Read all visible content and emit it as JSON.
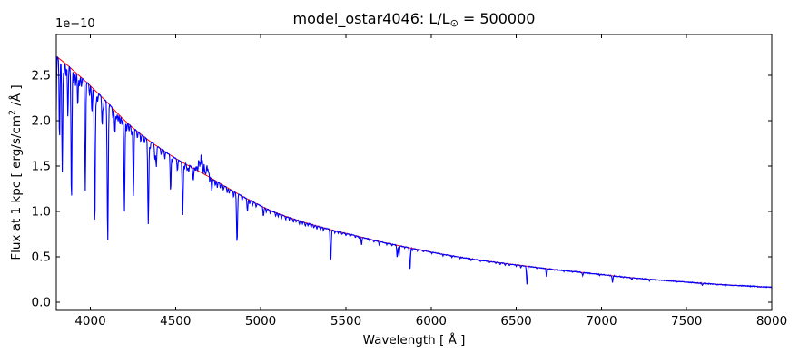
{
  "figure": {
    "title_prefix": "model_ostar4046: L/L",
    "title_sub": "⊙",
    "title_suffix": " = 500000",
    "offset_text": "1e−10",
    "xlabel": "Wavelength [ Å ]",
    "ylabel_prefix": "Flux at 1 kpc [ erg/s/cm",
    "ylabel_sup": "2",
    "ylabel_suffix": " /Å ]",
    "background_color": "#ffffff",
    "frame_color": "#000000"
  },
  "chart_data": {
    "type": "line",
    "title": "model_ostar4046: L/L⊙ = 500000",
    "xlabel": "Wavelength [ Å ]",
    "ylabel": "Flux at 1 kpc [ erg/s/cm2 /Å ]",
    "y_offset_text": "1e−10",
    "y_unit_factor": "1e-10 erg/s/cm2/Å",
    "xlim": [
      3800,
      8000
    ],
    "ylim": [
      -0.09,
      2.95
    ],
    "xticks": [
      4000,
      4500,
      5000,
      5500,
      6000,
      6500,
      7000,
      7500,
      8000
    ],
    "yticks": [
      "0.0",
      "0.5",
      "1.0",
      "1.5",
      "2.0",
      "2.5"
    ],
    "grid": false,
    "legend": "none",
    "tick_direction": "in",
    "series": [
      {
        "name": "continuum",
        "color": "#ff0000",
        "description": "smooth stellar continuum, flux in units of 1e-10",
        "anchors": [
          [
            3800,
            2.71
          ],
          [
            3860,
            2.62
          ],
          [
            3920,
            2.52
          ],
          [
            3980,
            2.42
          ],
          [
            4040,
            2.31
          ],
          [
            4100,
            2.2
          ],
          [
            4160,
            2.08
          ],
          [
            4220,
            1.97
          ],
          [
            4290,
            1.86
          ],
          [
            4360,
            1.76
          ],
          [
            4430,
            1.67
          ],
          [
            4500,
            1.585
          ],
          [
            4580,
            1.5
          ],
          [
            4660,
            1.42
          ],
          [
            4760,
            1.31
          ],
          [
            4861,
            1.2
          ],
          [
            4960,
            1.1
          ],
          [
            5070,
            1.0
          ],
          [
            5180,
            0.925
          ],
          [
            5300,
            0.855
          ],
          [
            5420,
            0.795
          ],
          [
            5540,
            0.74
          ],
          [
            5660,
            0.685
          ],
          [
            5780,
            0.635
          ],
          [
            5900,
            0.59
          ],
          [
            6020,
            0.545
          ],
          [
            6140,
            0.505
          ],
          [
            6260,
            0.47
          ],
          [
            6400,
            0.435
          ],
          [
            6550,
            0.4
          ],
          [
            6700,
            0.365
          ],
          [
            6850,
            0.335
          ],
          [
            7000,
            0.305
          ],
          [
            7150,
            0.275
          ],
          [
            7300,
            0.25
          ],
          [
            7450,
            0.228
          ],
          [
            7600,
            0.208
          ],
          [
            7750,
            0.19
          ],
          [
            8000,
            0.165
          ]
        ]
      },
      {
        "name": "spectrum",
        "color": "#0000ff",
        "description": "synthetic O-star spectrum = continuum with absorption/emission lines",
        "absorption_lines": [
          [
            3798,
            0.3,
            2.5
          ],
          [
            3819,
            0.34,
            2.5
          ],
          [
            3835,
            0.46,
            2.8
          ],
          [
            3868,
            0.22,
            2.5
          ],
          [
            3889,
            0.58,
            2.8
          ],
          [
            3926,
            0.14,
            2.5
          ],
          [
            3970,
            0.5,
            2.8
          ],
          [
            4009,
            0.12,
            2.5
          ],
          [
            4026,
            0.65,
            2.8
          ],
          [
            4069,
            0.14,
            2.5
          ],
          [
            4102,
            0.7,
            3.0
          ],
          [
            4144,
            0.12,
            2.5
          ],
          [
            4200,
            0.5,
            2.8
          ],
          [
            4253,
            0.4,
            2.5
          ],
          [
            4340,
            0.52,
            3.0
          ],
          [
            4379,
            0.1,
            2.5
          ],
          [
            4387,
            0.14,
            2.5
          ],
          [
            4471,
            0.25,
            2.5
          ],
          [
            4511,
            0.08,
            2.5
          ],
          [
            4542,
            0.38,
            2.8
          ],
          [
            4604,
            0.1,
            2.5
          ],
          [
            4713,
            0.1,
            2.5
          ],
          [
            4861,
            0.46,
            3.0
          ],
          [
            4922,
            0.12,
            2.5
          ],
          [
            5016,
            0.1,
            2.5
          ],
          [
            5411,
            0.45,
            2.8
          ],
          [
            5592,
            0.12,
            2.5
          ],
          [
            5696,
            0.06,
            2.5
          ],
          [
            5801,
            0.22,
            2.5
          ],
          [
            5812,
            0.18,
            2.5
          ],
          [
            5876,
            0.42,
            2.8
          ],
          [
            6406,
            0.05,
            2.5
          ],
          [
            6435,
            0.04,
            2.5
          ],
          [
            6527,
            0.06,
            2.5
          ],
          [
            6563,
            0.5,
            3.0
          ],
          [
            6678,
            0.25,
            2.5
          ],
          [
            6890,
            0.1,
            2.5
          ],
          [
            7065,
            0.25,
            2.5
          ],
          [
            7178,
            0.1,
            2.5
          ],
          [
            7281,
            0.08,
            2.5
          ],
          [
            7593,
            0.12,
            2.5
          ],
          [
            7726,
            0.06,
            2.5
          ]
        ],
        "weak_lines": [
          [
            3845,
            0.06
          ],
          [
            3857,
            0.05
          ],
          [
            3903,
            0.05
          ],
          [
            3913,
            0.06
          ],
          [
            3936,
            0.05
          ],
          [
            3948,
            0.04
          ],
          [
            3995,
            0.05
          ],
          [
            4035,
            0.05
          ],
          [
            4043,
            0.04
          ],
          [
            4076,
            0.05
          ],
          [
            4097,
            0.06
          ],
          [
            4132,
            0.05
          ],
          [
            4153,
            0.04
          ],
          [
            4163,
            0.04
          ],
          [
            4174,
            0.05
          ],
          [
            4186,
            0.04
          ],
          [
            4213,
            0.05
          ],
          [
            4227,
            0.04
          ],
          [
            4242,
            0.05
          ],
          [
            4276,
            0.04
          ],
          [
            4296,
            0.05
          ],
          [
            4317,
            0.04
          ],
          [
            4351,
            0.05
          ],
          [
            4415,
            0.04
          ],
          [
            4437,
            0.05
          ],
          [
            4481,
            0.04
          ],
          [
            4553,
            0.04
          ],
          [
            4568,
            0.05
          ],
          [
            4578,
            0.04
          ],
          [
            4699,
            0.04
          ],
          [
            4733,
            0.04
          ],
          [
            4745,
            0.05
          ],
          [
            4763,
            0.04
          ],
          [
            4781,
            0.04
          ],
          [
            4803,
            0.05
          ],
          [
            4815,
            0.04
          ],
          [
            4841,
            0.05
          ],
          [
            4891,
            0.04
          ],
          [
            4935,
            0.04
          ],
          [
            4952,
            0.04
          ],
          [
            4973,
            0.04
          ],
          [
            5033,
            0.04
          ],
          [
            5056,
            0.03
          ],
          [
            5088,
            0.04
          ],
          [
            5102,
            0.03
          ],
          [
            5122,
            0.04
          ],
          [
            5147,
            0.04
          ],
          [
            5168,
            0.03
          ],
          [
            5191,
            0.04
          ],
          [
            5208,
            0.03
          ],
          [
            5227,
            0.04
          ],
          [
            5245,
            0.03
          ],
          [
            5262,
            0.04
          ],
          [
            5278,
            0.03
          ],
          [
            5296,
            0.04
          ],
          [
            5312,
            0.03
          ],
          [
            5330,
            0.04
          ],
          [
            5350,
            0.03
          ],
          [
            5368,
            0.03
          ],
          [
            5435,
            0.03
          ],
          [
            5455,
            0.03
          ],
          [
            5477,
            0.03
          ],
          [
            5500,
            0.03
          ],
          [
            5525,
            0.03
          ],
          [
            5556,
            0.03
          ],
          [
            5577,
            0.03
          ],
          [
            5640,
            0.03
          ],
          [
            5665,
            0.03
          ],
          [
            5740,
            0.03
          ],
          [
            5770,
            0.03
          ],
          [
            5845,
            0.03
          ],
          [
            5890,
            0.04
          ],
          [
            5920,
            0.03
          ],
          [
            5955,
            0.03
          ],
          [
            6004,
            0.03
          ],
          [
            6070,
            0.03
          ],
          [
            6122,
            0.03
          ],
          [
            6170,
            0.03
          ],
          [
            6235,
            0.03
          ],
          [
            6290,
            0.03
          ],
          [
            6345,
            0.03
          ],
          [
            6380,
            0.03
          ],
          [
            6460,
            0.03
          ],
          [
            6500,
            0.03
          ],
          [
            6620,
            0.03
          ],
          [
            6722,
            0.03
          ],
          [
            6780,
            0.03
          ],
          [
            6830,
            0.03
          ],
          [
            6990,
            0.03
          ],
          [
            7130,
            0.03
          ],
          [
            7320,
            0.03
          ],
          [
            7440,
            0.03
          ],
          [
            7520,
            0.03
          ],
          [
            7680,
            0.03
          ],
          [
            7850,
            0.03
          ],
          [
            7920,
            0.03
          ]
        ],
        "default_weak_sigma": 2.2,
        "emission_lines": [
          [
            4634,
            0.07,
            2.5
          ],
          [
            4641,
            0.11,
            2.5
          ],
          [
            4650,
            0.18,
            3.0
          ],
          [
            4658,
            0.12,
            2.5
          ],
          [
            4668,
            0.08,
            2.5
          ],
          [
            4686,
            0.1,
            3.0
          ],
          [
            4697,
            0.05,
            2.5
          ]
        ],
        "noise": {
          "seed": 7,
          "amplitude": 0.005
        },
        "noisy_bands": [
          {
            "from": 4555,
            "to": 4615,
            "amplitude": 0.02
          },
          {
            "from": 4615,
            "to": 4700,
            "amplitude": 0.045
          }
        ]
      }
    ]
  }
}
